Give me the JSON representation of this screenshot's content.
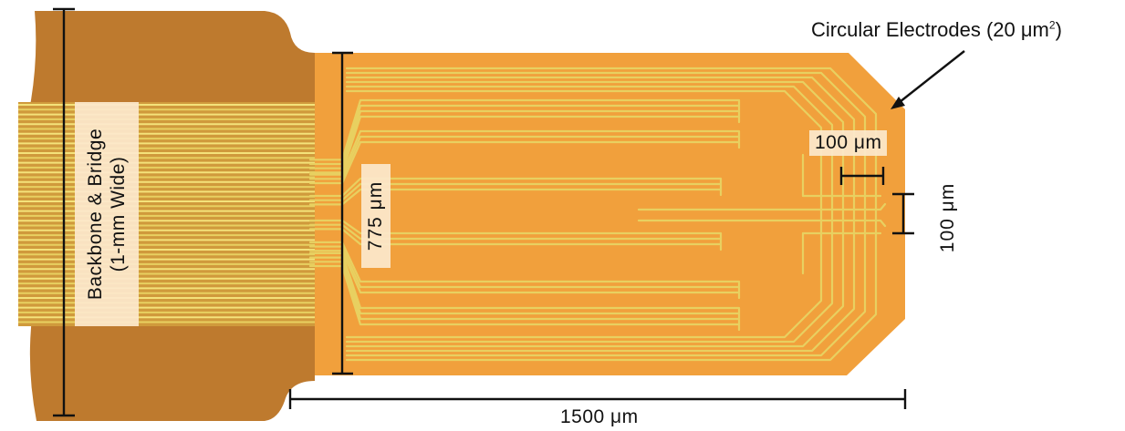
{
  "labels": {
    "circular_electrodes_main": "Circular Electrodes (20 μm",
    "circular_electrodes_sup": "2",
    "circular_electrodes_end": ")",
    "backbone_line1": "Backbone & Bridge",
    "backbone_line2": "(1-mm Wide)",
    "width_775": "775 μm",
    "electrode_spacing_horizontal": "100 μm",
    "electrode_spacing_vertical": "100 μm",
    "length_1500": "1500 μm"
  },
  "colors": {
    "backbone": "#BE7A2E",
    "probe": "#F1A03C",
    "trace": "#E8D060",
    "trace_light": "#F4E27A",
    "dimension_line": "#111111"
  }
}
